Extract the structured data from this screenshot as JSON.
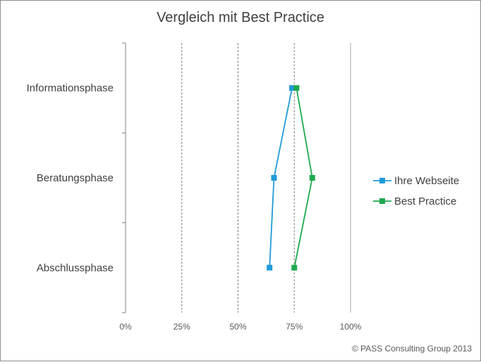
{
  "chart_data": {
    "type": "line",
    "orientation": "horizontal",
    "title": "Vergleich mit Best Practice",
    "categories": [
      "Informationsphase",
      "Beratungsphase",
      "Abschlussphase"
    ],
    "x_ticks": [
      "0%",
      "25%",
      "50%",
      "75%",
      "100%"
    ],
    "xlim": [
      0,
      1
    ],
    "grid": "vertical-dashed",
    "legend_position": "right",
    "series": [
      {
        "name": "Ihre Webseite",
        "color": "#1F9BD7",
        "values": [
          0.74,
          0.66,
          0.64
        ]
      },
      {
        "name": "Best Practice",
        "color": "#1FA84E",
        "values": [
          0.76,
          0.83,
          0.75
        ]
      }
    ]
  },
  "footer": "© PASS Consulting  Group 2013"
}
